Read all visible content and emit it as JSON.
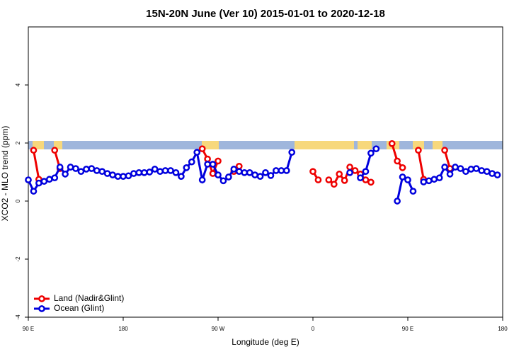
{
  "chart_data": {
    "type": "line",
    "title": "15N-20N June (Ver 10)   2015-01-01 to 2020-12-18",
    "xlabel": "Longitude (deg E)",
    "ylabel": "XCO2 - MLO trend (ppm)",
    "x": [
      90,
      95,
      100,
      105,
      110,
      115,
      120,
      125,
      130,
      135,
      140,
      145,
      150,
      155,
      160,
      165,
      170,
      175,
      180,
      185,
      190,
      195,
      200,
      205,
      210,
      215,
      220,
      225,
      230,
      235,
      240,
      245,
      250,
      255,
      260,
      265,
      270,
      275,
      280,
      285,
      290,
      295,
      300,
      305,
      310,
      315,
      320,
      325,
      330,
      335,
      340,
      345,
      350,
      355,
      360,
      365,
      370,
      375,
      380,
      385,
      390,
      395,
      400,
      405,
      410,
      415,
      420,
      425,
      430,
      435,
      440,
      445,
      450,
      455,
      460,
      465,
      470,
      475,
      480,
      485,
      490,
      495,
      500,
      505,
      510,
      515,
      520,
      525,
      530,
      535,
      540
    ],
    "series": [
      {
        "name": "Land (Nadir&Glint)",
        "color": "#ee0000",
        "values": [
          null,
          1.75,
          0.75,
          null,
          null,
          1.75,
          1.12,
          null,
          null,
          null,
          null,
          null,
          null,
          null,
          null,
          null,
          null,
          null,
          null,
          null,
          null,
          null,
          null,
          null,
          null,
          null,
          null,
          null,
          null,
          null,
          null,
          null,
          null,
          1.8,
          1.45,
          0.95,
          1.38,
          null,
          null,
          1.02,
          1.2,
          null,
          null,
          null,
          null,
          null,
          null,
          null,
          null,
          null,
          null,
          null,
          null,
          null,
          1.02,
          0.73,
          null,
          0.73,
          0.58,
          0.93,
          0.71,
          1.17,
          1.05,
          0.93,
          0.73,
          0.65,
          null,
          null,
          null,
          1.98,
          1.38,
          1.15,
          null,
          null,
          1.75,
          0.75,
          null,
          null,
          null,
          1.75,
          1.12,
          null,
          null,
          null,
          null,
          null,
          null,
          null,
          null,
          null,
          null
        ]
      },
      {
        "name": "Ocean (Glint)",
        "color": "#0000dd",
        "values": [
          0.73,
          0.34,
          0.62,
          0.68,
          0.75,
          0.8,
          1.17,
          0.93,
          1.17,
          1.12,
          1.02,
          1.1,
          1.12,
          1.05,
          1.02,
          0.95,
          0.9,
          0.85,
          0.85,
          0.87,
          0.95,
          0.98,
          0.98,
          1.0,
          1.1,
          1.02,
          1.05,
          1.05,
          0.98,
          0.85,
          1.15,
          1.35,
          1.68,
          0.73,
          1.27,
          1.27,
          0.9,
          0.7,
          0.83,
          1.1,
          1.02,
          0.98,
          0.98,
          0.9,
          0.85,
          0.98,
          0.88,
          1.05,
          1.05,
          1.05,
          1.68,
          null,
          null,
          null,
          null,
          null,
          null,
          null,
          null,
          null,
          null,
          0.98,
          null,
          0.8,
          1.02,
          1.65,
          1.8,
          null,
          null,
          null,
          0.0,
          0.83,
          0.73,
          0.34,
          null,
          0.66,
          0.7,
          0.75,
          0.8,
          1.17,
          0.93,
          1.17,
          1.12,
          1.02,
          1.1,
          1.12,
          1.05,
          1.02,
          0.95,
          0.9,
          null
        ]
      }
    ],
    "xlim": [
      90,
      540
    ],
    "xticks": [
      {
        "value": 90,
        "label": "90 E"
      },
      180,
      {
        "value": 270,
        "label": "90 W"
      },
      {
        "value": 360,
        "label": "0"
      },
      {
        "value": 450,
        "label": "90 E"
      },
      {
        "value": 540,
        "label": "180"
      }
    ],
    "ylim": [
      -4,
      6
    ],
    "yticks": [
      -4,
      -2,
      0,
      2,
      4
    ],
    "legend": "bottomleft"
  }
}
